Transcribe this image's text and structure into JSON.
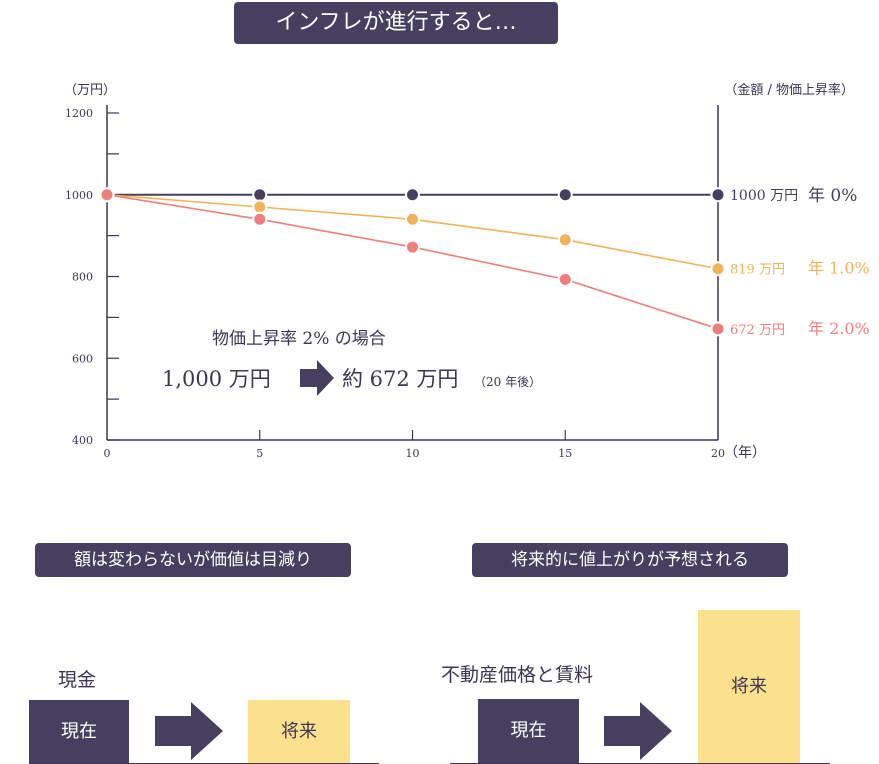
{
  "title": "インフレが進行すると…",
  "chart_data": {
    "type": "line",
    "x": [
      0,
      5,
      10,
      15,
      20
    ],
    "xlim": [
      0,
      20
    ],
    "ylim": [
      400,
      1200
    ],
    "y_ticks": [
      400,
      600,
      800,
      1000,
      1200
    ],
    "x_ticks": [
      0,
      5,
      10,
      15,
      20
    ],
    "ylabel": "（万円）",
    "xlabel": "（年）",
    "right_label": "（金額 / 物価上昇率）",
    "grid": false,
    "series": [
      {
        "values": [
          1000,
          1000,
          1000,
          1000,
          1000
        ],
        "color": "#463f5f",
        "end_value": "1000 万円",
        "end_rate": "年 0%"
      },
      {
        "values": [
          1000,
          970,
          940,
          890,
          819
        ],
        "color": "#f1b35a",
        "end_value": "819 万円",
        "end_rate": "年 1.0%"
      },
      {
        "values": [
          1000,
          940,
          872,
          793,
          672
        ],
        "color": "#ee7e7b",
        "end_value": "672 万円",
        "end_rate": "年 2.0%"
      }
    ],
    "annotation": {
      "line1": "物価上昇率 2% の場合",
      "from": "1,000 万円",
      "to": "約 672 万円",
      "note": "（20 年後）"
    }
  },
  "left_panel": {
    "title": "額は変わらないが価値は目減り",
    "label": "現金",
    "now": "現在",
    "future": "将来"
  },
  "right_panel": {
    "title": "将来的に値上がりが予想される",
    "label": "不動産価格と賃料",
    "now": "現在",
    "future": "将来"
  }
}
